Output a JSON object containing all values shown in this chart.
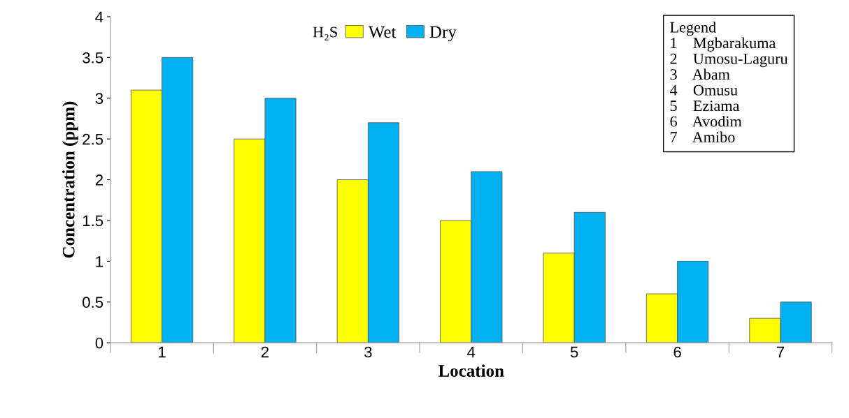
{
  "chart_data": {
    "type": "bar",
    "xlabel": "Location",
    "ylabel": "Concentration (ppm)",
    "legend_title": "H₂S",
    "categories": [
      "1",
      "2",
      "3",
      "4",
      "5",
      "6",
      "7"
    ],
    "series": [
      {
        "name": "Wet",
        "color": "#ffff00",
        "values": [
          3.1,
          2.5,
          2.0,
          1.5,
          1.1,
          0.6,
          0.3
        ]
      },
      {
        "name": "Dry",
        "color": "#00b0f0",
        "values": [
          3.5,
          3.0,
          2.7,
          2.1,
          1.6,
          1.0,
          0.5
        ]
      }
    ],
    "ylim": [
      0,
      4
    ],
    "yticks": [
      0,
      0.5,
      1,
      1.5,
      2,
      2.5,
      3,
      3.5,
      4
    ],
    "grid": false,
    "legend": "top",
    "annotations": [
      "Legend",
      "1    Mgbarakuma",
      "2    Umosu-Laguru",
      "3    Abam",
      "4    Omusu",
      "5    Eziama",
      "6    Avodim",
      "7    Amibo"
    ]
  }
}
